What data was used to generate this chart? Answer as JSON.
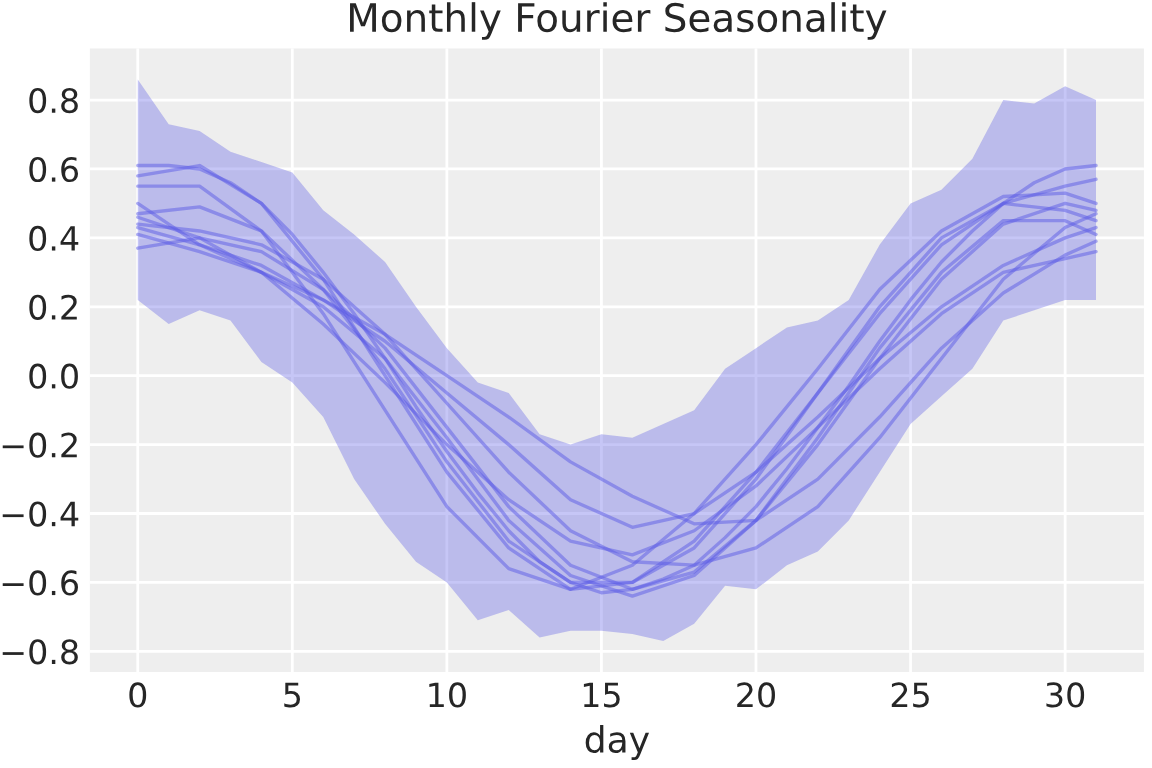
{
  "chart_data": {
    "type": "line",
    "title": "Monthly Fourier Seasonality",
    "xlabel": "day",
    "xlim": [
      -1.55,
      32.55
    ],
    "xticks": [
      0,
      5,
      10,
      15,
      20,
      25,
      30
    ],
    "ylim": [
      -0.86,
      0.95
    ],
    "yticks": [
      {
        "value": -0.8,
        "label": "−0.8"
      },
      {
        "value": -0.6,
        "label": "−0.6"
      },
      {
        "value": -0.4,
        "label": "−0.4"
      },
      {
        "value": -0.2,
        "label": "−0.2"
      },
      {
        "value": 0,
        "label": "0.0"
      },
      0.2,
      0.4,
      0.6,
      0.8
    ],
    "grid": true,
    "line_style": "solid",
    "series": [
      {
        "color": "#5c5ce6",
        "x": [
          0,
          1,
          2,
          3,
          4,
          5,
          6,
          7,
          8,
          9,
          10,
          11,
          12,
          13,
          14,
          15,
          16,
          17,
          18,
          19,
          20,
          21,
          22,
          23,
          24,
          25,
          26,
          27,
          28,
          29,
          30,
          31
        ],
        "values": [
          0.61,
          0.61,
          0.6,
          0.56,
          0.5,
          0.41,
          0.3,
          0.18,
          0.05,
          -0.09,
          -0.22,
          -0.34,
          -0.45,
          -0.54,
          -0.6,
          -0.63,
          -0.62,
          -0.59,
          -0.55,
          -0.47,
          -0.38,
          -0.27,
          -0.15,
          -0.03,
          0.1,
          0.22,
          0.33,
          0.42,
          0.5,
          0.56,
          0.6,
          0.61
        ],
        "lower": [
          0.22,
          0.15,
          0.19,
          0.16,
          0.04,
          -0.02,
          -0.12,
          -0.3,
          -0.43,
          -0.54,
          -0.6,
          -0.71,
          -0.68,
          -0.76,
          -0.74,
          -0.74,
          -0.75,
          -0.77,
          -0.72,
          -0.61,
          -0.62,
          -0.55,
          -0.51,
          -0.42,
          -0.28,
          -0.14,
          -0.06,
          0.02,
          0.16,
          0.19,
          0.22,
          0.22
        ],
        "upper": [
          0.86,
          0.73,
          0.71,
          0.65,
          0.62,
          0.59,
          0.48,
          0.41,
          0.33,
          0.2,
          0.08,
          -0.02,
          -0.05,
          -0.17,
          -0.2,
          -0.17,
          -0.18,
          -0.14,
          -0.1,
          0.02,
          0.08,
          0.14,
          0.16,
          0.22,
          0.38,
          0.5,
          0.54,
          0.63,
          0.8,
          0.79,
          0.84,
          0.8
        ]
      },
      {
        "color": "#5c5ce6",
        "x": [
          0,
          2,
          4,
          6,
          8,
          10,
          12,
          14,
          16,
          18,
          20,
          22,
          24,
          26,
          28,
          30,
          31
        ],
        "values": [
          0.58,
          0.61,
          0.5,
          0.28,
          0.0,
          -0.28,
          -0.5,
          -0.62,
          -0.6,
          -0.48,
          -0.28,
          -0.05,
          0.18,
          0.38,
          0.5,
          0.55,
          0.57
        ]
      },
      {
        "color": "#5c5ce6",
        "x": [
          0,
          2,
          4,
          6,
          8,
          10,
          12,
          14,
          16,
          18,
          20,
          22,
          24,
          26,
          28,
          30,
          31
        ],
        "values": [
          0.55,
          0.55,
          0.42,
          0.18,
          -0.1,
          -0.38,
          -0.56,
          -0.62,
          -0.55,
          -0.4,
          -0.2,
          0.02,
          0.25,
          0.42,
          0.52,
          0.53,
          0.5
        ]
      },
      {
        "color": "#5c5ce6",
        "x": [
          0,
          2,
          4,
          6,
          8,
          10,
          12,
          14,
          16,
          18,
          20,
          22,
          24,
          26,
          28,
          30,
          31
        ],
        "values": [
          0.47,
          0.49,
          0.42,
          0.25,
          0.02,
          -0.25,
          -0.48,
          -0.6,
          -0.6,
          -0.5,
          -0.3,
          -0.05,
          0.2,
          0.4,
          0.5,
          0.48,
          0.45
        ]
      },
      {
        "color": "#5c5ce6",
        "x": [
          0,
          2,
          4,
          6,
          8,
          10,
          12,
          14,
          16,
          18,
          20,
          22,
          24,
          26,
          28,
          30,
          31
        ],
        "values": [
          0.44,
          0.42,
          0.38,
          0.28,
          0.12,
          -0.08,
          -0.28,
          -0.45,
          -0.54,
          -0.55,
          -0.5,
          -0.38,
          -0.18,
          0.05,
          0.28,
          0.43,
          0.47
        ]
      },
      {
        "color": "#5c5ce6",
        "x": [
          0,
          2,
          4,
          6,
          8,
          10,
          12,
          14,
          16,
          18,
          20,
          22,
          24,
          26,
          28,
          30,
          31
        ],
        "values": [
          0.43,
          0.38,
          0.32,
          0.22,
          0.1,
          -0.05,
          -0.2,
          -0.36,
          -0.44,
          -0.4,
          -0.28,
          -0.12,
          0.05,
          0.2,
          0.32,
          0.4,
          0.43
        ]
      },
      {
        "color": "#5c5ce6",
        "x": [
          0,
          2,
          4,
          6,
          8,
          10,
          12,
          14,
          16,
          18,
          20,
          22,
          24,
          26,
          28,
          30,
          31
        ],
        "values": [
          0.41,
          0.36,
          0.3,
          0.22,
          0.12,
          0.0,
          -0.12,
          -0.25,
          -0.35,
          -0.43,
          -0.42,
          -0.3,
          -0.12,
          0.08,
          0.24,
          0.35,
          0.39
        ]
      },
      {
        "color": "#5c5ce6",
        "x": [
          0,
          2,
          4,
          6,
          8,
          10,
          12,
          14,
          16,
          18,
          20,
          22,
          24,
          26,
          28,
          30,
          31
        ],
        "values": [
          0.37,
          0.4,
          0.36,
          0.25,
          0.08,
          -0.15,
          -0.38,
          -0.55,
          -0.62,
          -0.57,
          -0.42,
          -0.2,
          0.05,
          0.28,
          0.44,
          0.5,
          0.48
        ]
      },
      {
        "color": "#5c5ce6",
        "x": [
          0,
          2,
          4,
          6,
          8,
          10,
          12,
          14,
          16,
          18,
          20,
          22,
          24,
          26,
          28,
          30,
          31
        ],
        "values": [
          0.46,
          0.4,
          0.3,
          0.15,
          -0.02,
          -0.2,
          -0.36,
          -0.48,
          -0.52,
          -0.45,
          -0.32,
          -0.15,
          0.02,
          0.18,
          0.3,
          0.34,
          0.36
        ]
      },
      {
        "color": "#5c5ce6",
        "x": [
          0,
          2,
          4,
          6,
          8,
          10,
          12,
          14,
          16,
          18,
          20,
          22,
          24,
          26,
          28,
          30,
          31
        ],
        "values": [
          0.5,
          0.38,
          0.3,
          0.2,
          0.05,
          -0.18,
          -0.42,
          -0.58,
          -0.64,
          -0.58,
          -0.42,
          -0.18,
          0.08,
          0.3,
          0.45,
          0.45,
          0.41
        ]
      }
    ]
  }
}
